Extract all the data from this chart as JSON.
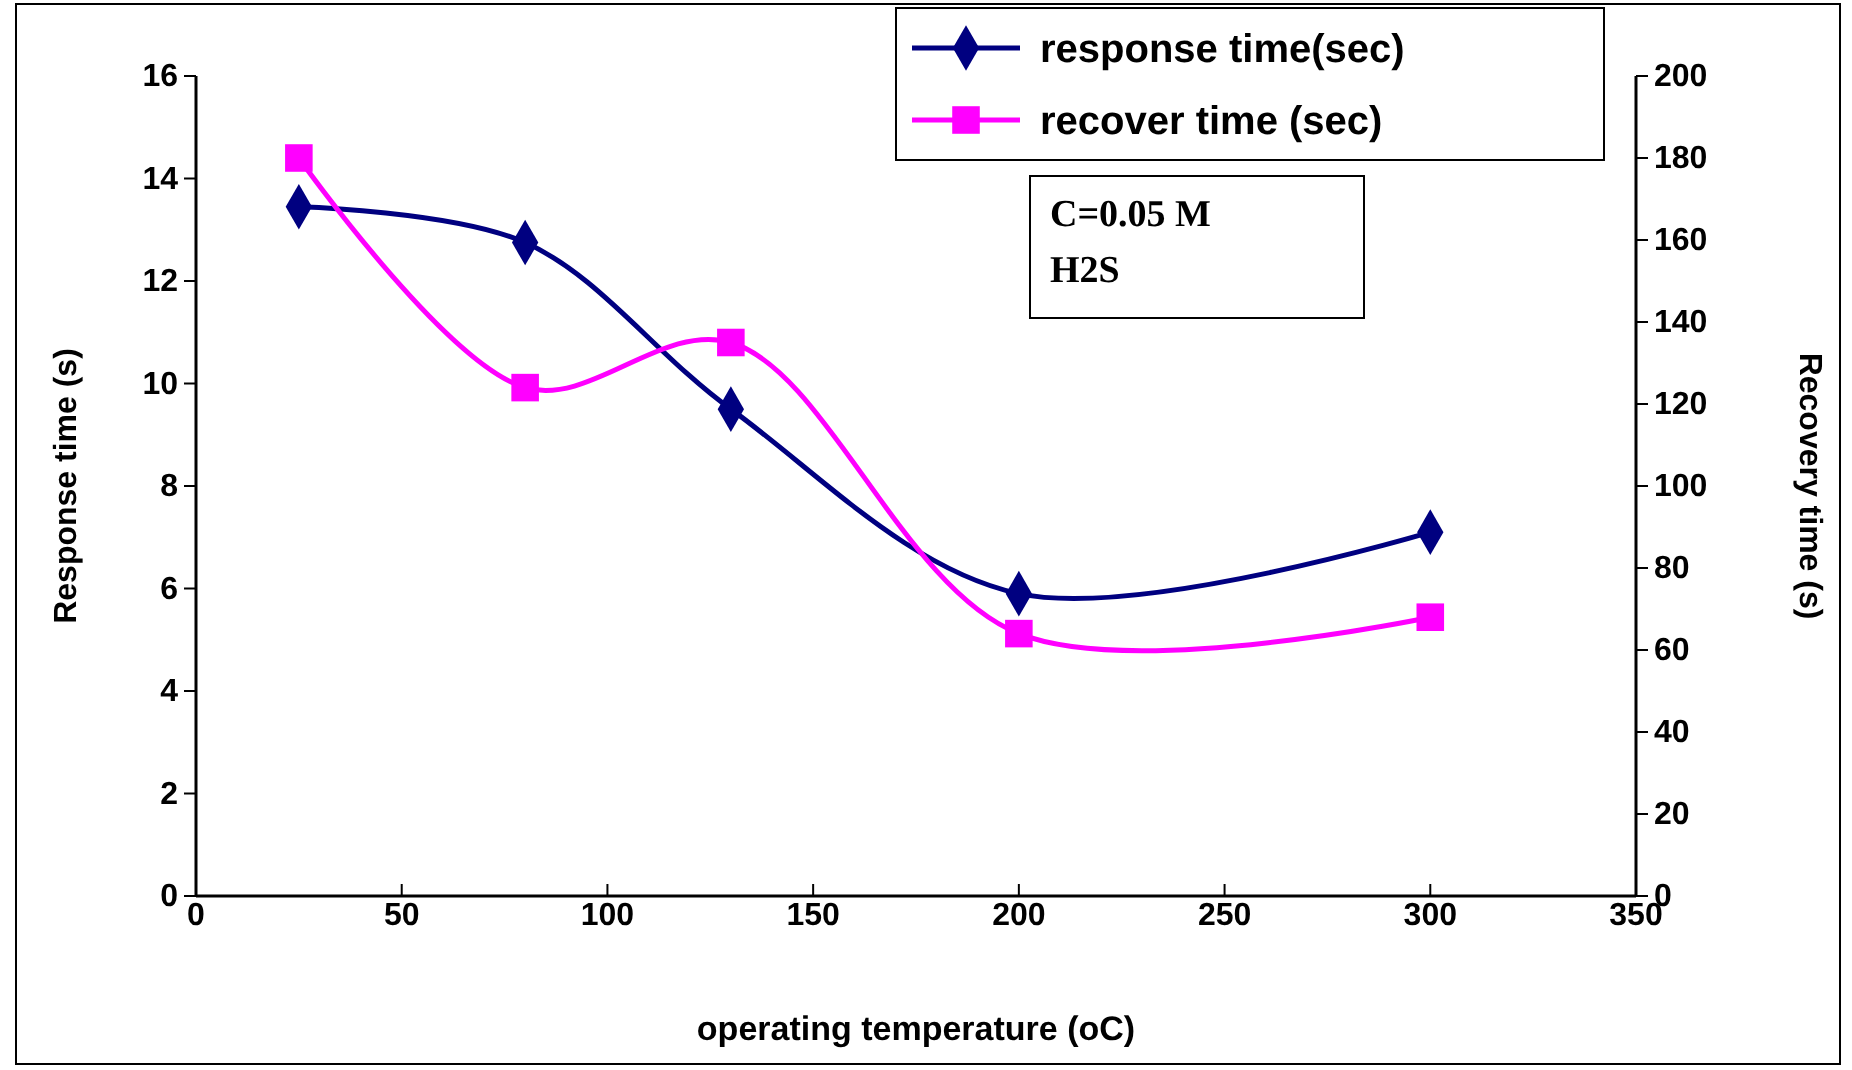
{
  "chart_data": {
    "type": "line",
    "xlabel": "operating temperature (oC)",
    "ylabel": "Response time (s)",
    "y2label": "Recovery time (s)",
    "x": [
      25,
      80,
      130,
      200,
      300
    ],
    "series": [
      {
        "name": "response time(sec)",
        "color": "#000080",
        "values": [
          13.45,
          12.75,
          9.5,
          5.9,
          7.1
        ],
        "marker": "diamond"
      },
      {
        "name": "recover time (sec)",
        "color": "#ff00ff",
        "values": [
          180,
          124,
          135,
          64,
          68
        ],
        "marker": "square",
        "axis": "y2"
      }
    ],
    "xlim": [
      0,
      350
    ],
    "xticks": [
      0,
      50,
      100,
      150,
      200,
      250,
      300,
      350
    ],
    "ylim": [
      0,
      16
    ],
    "yticks": [
      0,
      2,
      4,
      6,
      8,
      10,
      12,
      14,
      16
    ],
    "y2lim": [
      0,
      200
    ],
    "y2ticks": [
      0,
      20,
      40,
      60,
      80,
      100,
      120,
      140,
      160,
      180,
      200
    ],
    "annotations": [
      "C=0.05 M",
      "H2S"
    ],
    "legend": "top right",
    "grid": false,
    "line_style": "solid"
  }
}
